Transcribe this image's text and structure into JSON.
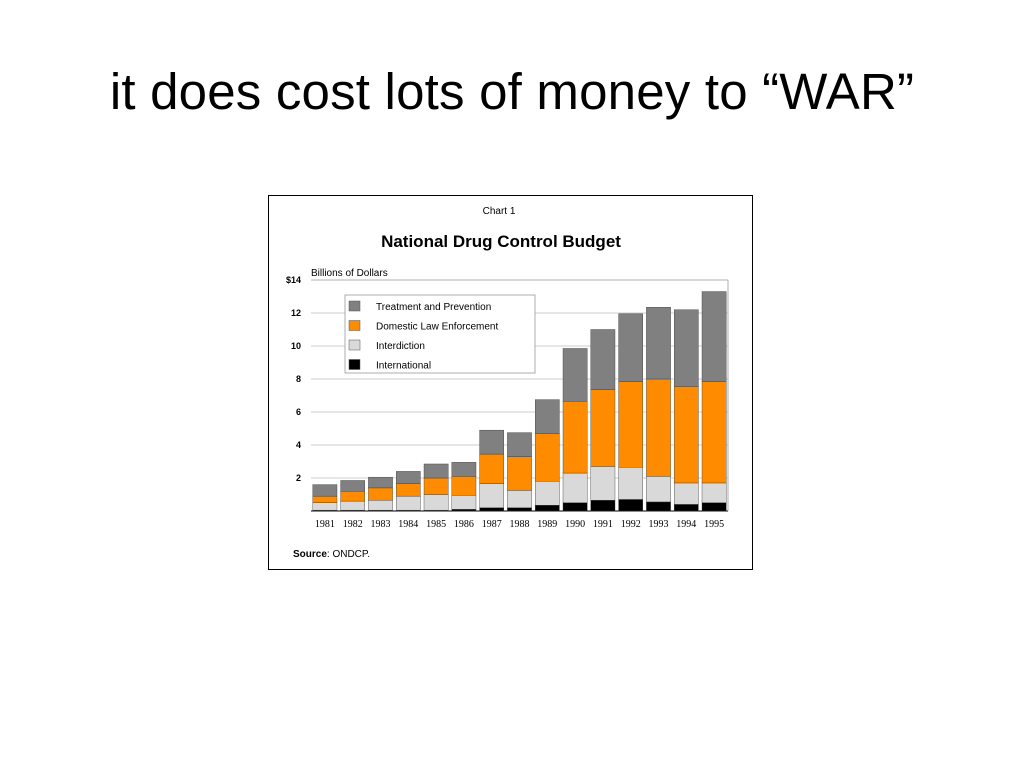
{
  "slide": {
    "title": "it does cost lots of money to “WAR”"
  },
  "chart_data": {
    "type": "bar",
    "stacked": true,
    "chart_number": "Chart 1",
    "title": "National Drug Control Budget",
    "ylabel": "Billions of Dollars",
    "xlabel": "",
    "source_label": "Source",
    "source_text": ": ONDCP.",
    "ylim": [
      0,
      14
    ],
    "y_ticks": [
      {
        "value": 2,
        "label": "2"
      },
      {
        "value": 4,
        "label": "4"
      },
      {
        "value": 6,
        "label": "6"
      },
      {
        "value": 8,
        "label": "8"
      },
      {
        "value": 10,
        "label": "10"
      },
      {
        "value": 12,
        "label": "12"
      },
      {
        "value": 14,
        "label": "$14"
      }
    ],
    "grid": true,
    "legend_position": "top-left",
    "categories": [
      "1981",
      "1982",
      "1983",
      "1984",
      "1985",
      "1986",
      "1987",
      "1988",
      "1989",
      "1990",
      "1991",
      "1992",
      "1993",
      "1994",
      "1995"
    ],
    "series": [
      {
        "name": "International",
        "color": "#000000",
        "values": [
          0.05,
          0.05,
          0.05,
          0.05,
          0.05,
          0.1,
          0.2,
          0.2,
          0.35,
          0.5,
          0.65,
          0.7,
          0.55,
          0.4,
          0.5
        ]
      },
      {
        "name": "Interdiction",
        "color": "#d9d9d9",
        "values": [
          0.45,
          0.55,
          0.6,
          0.85,
          0.95,
          0.85,
          1.45,
          1.05,
          1.45,
          1.8,
          2.05,
          1.95,
          1.55,
          1.3,
          1.2
        ]
      },
      {
        "name": "Domestic Law Enforcement",
        "color": "#ff8c00",
        "values": [
          0.4,
          0.6,
          0.75,
          0.75,
          1.0,
          1.15,
          1.8,
          2.05,
          2.9,
          4.35,
          4.65,
          5.2,
          5.9,
          5.85,
          6.15
        ]
      },
      {
        "name": "Treatment and Prevention",
        "color": "#808080",
        "values": [
          0.7,
          0.65,
          0.65,
          0.75,
          0.85,
          0.85,
          1.45,
          1.45,
          2.05,
          3.2,
          3.65,
          4.1,
          4.35,
          4.65,
          5.45
        ]
      }
    ],
    "legend_order": [
      "Treatment and Prevention",
      "Domestic Law Enforcement",
      "Interdiction",
      "International"
    ]
  }
}
